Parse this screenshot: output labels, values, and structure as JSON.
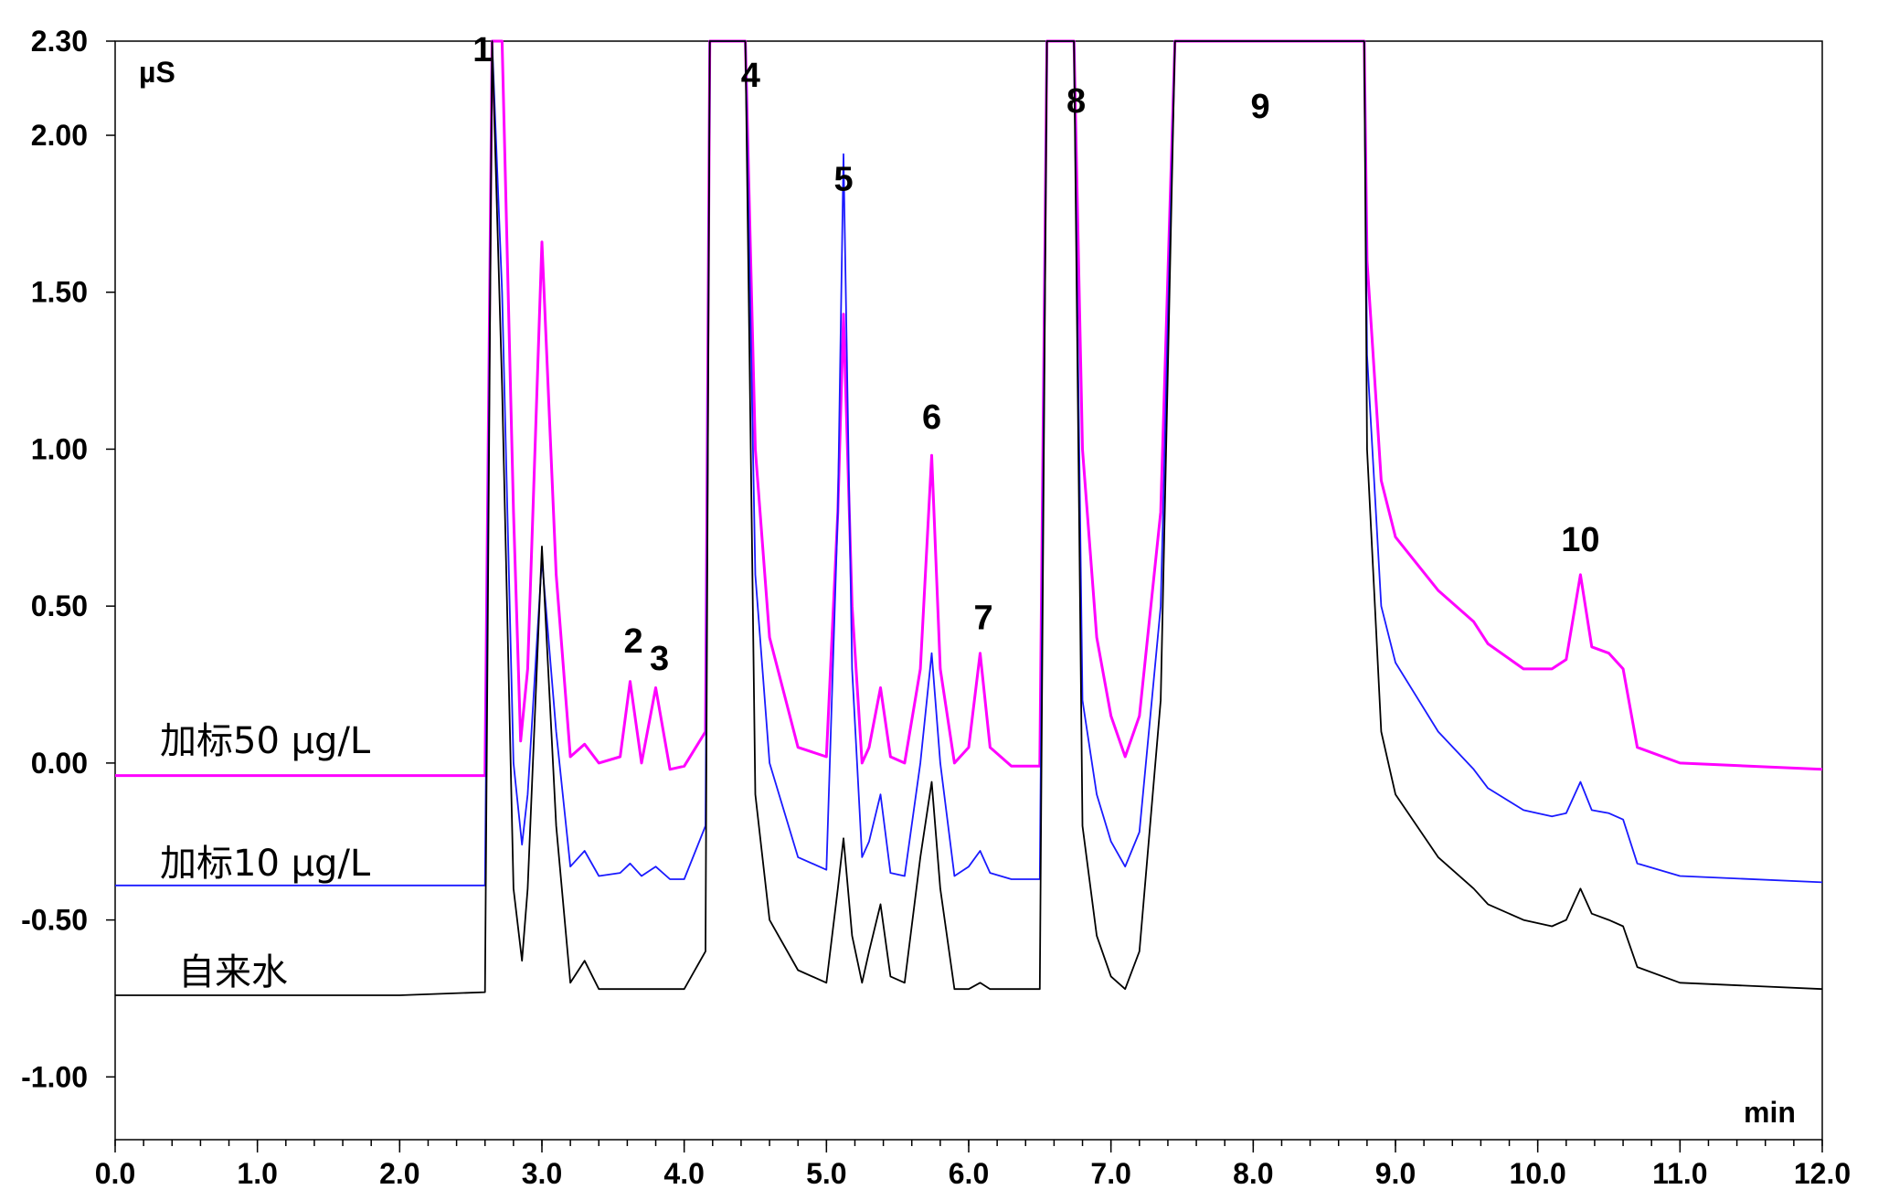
{
  "chart_data": {
    "type": "line",
    "title": "",
    "xlabel": "min",
    "ylabel": "µS",
    "xlim": [
      0.0,
      12.0
    ],
    "ylim": [
      -1.2,
      2.3
    ],
    "x_ticks": [
      "0.0",
      "1.0",
      "2.0",
      "3.0",
      "4.0",
      "5.0",
      "6.0",
      "7.0",
      "8.0",
      "9.0",
      "10.0",
      "11.0",
      "12.0"
    ],
    "y_ticks": [
      "2.30",
      "2.00",
      "1.50",
      "1.00",
      "0.50",
      "0.00",
      "-0.50",
      "-1.00"
    ],
    "y_tick_values": [
      2.3,
      2.0,
      1.5,
      1.0,
      0.5,
      0.0,
      -0.5,
      -1.0
    ],
    "grid": false,
    "peaks": [
      {
        "label": "1",
        "x": 2.62,
        "y": 2.3
      },
      {
        "label": "2",
        "x": 3.63,
        "y": 0.27
      },
      {
        "label": "3",
        "x": 3.8,
        "y": 0.25
      },
      {
        "label": "4",
        "x": 4.3,
        "y": 2.3
      },
      {
        "label": "5",
        "x": 5.12,
        "y": 1.94
      },
      {
        "label": "6",
        "x": 5.74,
        "y": 0.99
      },
      {
        "label": "7",
        "x": 6.09,
        "y": 0.35
      },
      {
        "label": "8",
        "x": 6.64,
        "y": 2.3
      },
      {
        "label": "9",
        "x": 8.05,
        "y": 2.3
      },
      {
        "label": "10",
        "x": 10.3,
        "y": 0.6
      }
    ],
    "series": [
      {
        "name": "加标50 µg/L",
        "color": "#ff00ff",
        "baseline": -0.04,
        "tail_decay": 0.5,
        "points": [
          [
            2.6,
            -0.04
          ],
          [
            2.65,
            2.3
          ],
          [
            2.72,
            2.3
          ],
          [
            2.8,
            0.8
          ],
          [
            2.85,
            0.07
          ],
          [
            2.9,
            0.3
          ],
          [
            3.0,
            1.66
          ],
          [
            3.1,
            0.6
          ],
          [
            3.2,
            0.02
          ],
          [
            3.3,
            0.06
          ],
          [
            3.4,
            0.0
          ],
          [
            3.55,
            0.02
          ],
          [
            3.62,
            0.26
          ],
          [
            3.7,
            0.0
          ],
          [
            3.8,
            0.24
          ],
          [
            3.9,
            -0.02
          ],
          [
            4.0,
            -0.01
          ],
          [
            4.15,
            0.1
          ],
          [
            4.18,
            2.3
          ],
          [
            4.43,
            2.3
          ],
          [
            4.5,
            1.0
          ],
          [
            4.6,
            0.4
          ],
          [
            4.8,
            0.05
          ],
          [
            5.0,
            0.02
          ],
          [
            5.08,
            0.8
          ],
          [
            5.12,
            1.43
          ],
          [
            5.18,
            0.5
          ],
          [
            5.25,
            0.0
          ],
          [
            5.3,
            0.05
          ],
          [
            5.38,
            0.24
          ],
          [
            5.45,
            0.02
          ],
          [
            5.55,
            0.0
          ],
          [
            5.66,
            0.3
          ],
          [
            5.74,
            0.98
          ],
          [
            5.8,
            0.3
          ],
          [
            5.9,
            0.0
          ],
          [
            6.0,
            0.05
          ],
          [
            6.08,
            0.35
          ],
          [
            6.15,
            0.05
          ],
          [
            6.3,
            -0.01
          ],
          [
            6.5,
            -0.01
          ],
          [
            6.55,
            2.3
          ],
          [
            6.74,
            2.3
          ],
          [
            6.8,
            1.0
          ],
          [
            6.9,
            0.4
          ],
          [
            7.0,
            0.15
          ],
          [
            7.1,
            0.02
          ],
          [
            7.2,
            0.15
          ],
          [
            7.35,
            0.8
          ],
          [
            7.45,
            2.3
          ],
          [
            8.78,
            2.3
          ]
        ],
        "tail_points": [
          [
            8.8,
            1.6
          ],
          [
            8.9,
            0.9
          ],
          [
            9.0,
            0.72
          ],
          [
            9.3,
            0.55
          ],
          [
            9.55,
            0.45
          ],
          [
            9.65,
            0.38
          ],
          [
            9.9,
            0.3
          ],
          [
            10.1,
            0.3
          ],
          [
            10.2,
            0.33
          ],
          [
            10.3,
            0.6
          ],
          [
            10.38,
            0.37
          ],
          [
            10.5,
            0.35
          ],
          [
            10.6,
            0.3
          ],
          [
            10.7,
            0.05
          ],
          [
            11.0,
            0.0
          ],
          [
            12.0,
            -0.02
          ]
        ]
      },
      {
        "name": "加标10 µg/L",
        "color": "#1a1aff",
        "baseline": -0.39,
        "points": [
          [
            2.6,
            -0.39
          ],
          [
            2.65,
            2.3
          ],
          [
            2.72,
            1.5
          ],
          [
            2.8,
            0.0
          ],
          [
            2.86,
            -0.26
          ],
          [
            2.9,
            -0.1
          ],
          [
            3.0,
            0.65
          ],
          [
            3.1,
            0.1
          ],
          [
            3.2,
            -0.33
          ],
          [
            3.3,
            -0.28
          ],
          [
            3.4,
            -0.36
          ],
          [
            3.55,
            -0.35
          ],
          [
            3.62,
            -0.32
          ],
          [
            3.7,
            -0.36
          ],
          [
            3.8,
            -0.33
          ],
          [
            3.9,
            -0.37
          ],
          [
            4.0,
            -0.37
          ],
          [
            4.15,
            -0.2
          ],
          [
            4.18,
            2.3
          ],
          [
            4.43,
            2.3
          ],
          [
            4.5,
            0.6
          ],
          [
            4.6,
            0.0
          ],
          [
            4.8,
            -0.3
          ],
          [
            5.0,
            -0.34
          ],
          [
            5.08,
            0.8
          ],
          [
            5.12,
            1.94
          ],
          [
            5.18,
            0.3
          ],
          [
            5.25,
            -0.3
          ],
          [
            5.3,
            -0.25
          ],
          [
            5.38,
            -0.1
          ],
          [
            5.45,
            -0.35
          ],
          [
            5.55,
            -0.36
          ],
          [
            5.66,
            0.0
          ],
          [
            5.74,
            0.35
          ],
          [
            5.8,
            0.0
          ],
          [
            5.9,
            -0.36
          ],
          [
            6.0,
            -0.33
          ],
          [
            6.08,
            -0.28
          ],
          [
            6.15,
            -0.35
          ],
          [
            6.3,
            -0.37
          ],
          [
            6.5,
            -0.37
          ],
          [
            6.55,
            2.3
          ],
          [
            6.74,
            2.3
          ],
          [
            6.8,
            0.2
          ],
          [
            6.9,
            -0.1
          ],
          [
            7.0,
            -0.25
          ],
          [
            7.1,
            -0.33
          ],
          [
            7.2,
            -0.22
          ],
          [
            7.35,
            0.5
          ],
          [
            7.45,
            2.3
          ],
          [
            8.78,
            2.3
          ]
        ],
        "tail_points": [
          [
            8.8,
            1.3
          ],
          [
            8.9,
            0.5
          ],
          [
            9.0,
            0.32
          ],
          [
            9.3,
            0.1
          ],
          [
            9.55,
            -0.02
          ],
          [
            9.65,
            -0.08
          ],
          [
            9.9,
            -0.15
          ],
          [
            10.1,
            -0.17
          ],
          [
            10.2,
            -0.16
          ],
          [
            10.3,
            -0.06
          ],
          [
            10.38,
            -0.15
          ],
          [
            10.5,
            -0.16
          ],
          [
            10.6,
            -0.18
          ],
          [
            10.7,
            -0.32
          ],
          [
            11.0,
            -0.36
          ],
          [
            12.0,
            -0.38
          ]
        ]
      },
      {
        "name": "自来水",
        "color": "#000000",
        "baseline": -0.74,
        "points": [
          [
            2.6,
            -0.73
          ],
          [
            2.65,
            2.3
          ],
          [
            2.72,
            1.2
          ],
          [
            2.8,
            -0.4
          ],
          [
            2.86,
            -0.63
          ],
          [
            2.9,
            -0.4
          ],
          [
            3.0,
            0.69
          ],
          [
            3.1,
            -0.2
          ],
          [
            3.2,
            -0.7
          ],
          [
            3.3,
            -0.63
          ],
          [
            3.4,
            -0.72
          ],
          [
            3.55,
            -0.72
          ],
          [
            3.62,
            -0.72
          ],
          [
            3.7,
            -0.72
          ],
          [
            3.8,
            -0.72
          ],
          [
            3.9,
            -0.72
          ],
          [
            4.0,
            -0.72
          ],
          [
            4.15,
            -0.6
          ],
          [
            4.18,
            2.3
          ],
          [
            4.43,
            2.3
          ],
          [
            4.5,
            -0.1
          ],
          [
            4.6,
            -0.5
          ],
          [
            4.8,
            -0.66
          ],
          [
            5.0,
            -0.7
          ],
          [
            5.08,
            -0.4
          ],
          [
            5.12,
            -0.24
          ],
          [
            5.18,
            -0.55
          ],
          [
            5.25,
            -0.7
          ],
          [
            5.3,
            -0.6
          ],
          [
            5.38,
            -0.45
          ],
          [
            5.45,
            -0.68
          ],
          [
            5.55,
            -0.7
          ],
          [
            5.66,
            -0.3
          ],
          [
            5.74,
            -0.06
          ],
          [
            5.8,
            -0.4
          ],
          [
            5.9,
            -0.72
          ],
          [
            6.0,
            -0.72
          ],
          [
            6.08,
            -0.7
          ],
          [
            6.15,
            -0.72
          ],
          [
            6.3,
            -0.72
          ],
          [
            6.5,
            -0.72
          ],
          [
            6.55,
            2.3
          ],
          [
            6.74,
            2.3
          ],
          [
            6.8,
            -0.2
          ],
          [
            6.9,
            -0.55
          ],
          [
            7.0,
            -0.68
          ],
          [
            7.1,
            -0.72
          ],
          [
            7.2,
            -0.6
          ],
          [
            7.35,
            0.2
          ],
          [
            7.45,
            2.3
          ],
          [
            8.78,
            2.3
          ]
        ],
        "tail_points": [
          [
            8.8,
            1.0
          ],
          [
            8.9,
            0.1
          ],
          [
            9.0,
            -0.1
          ],
          [
            9.3,
            -0.3
          ],
          [
            9.55,
            -0.4
          ],
          [
            9.65,
            -0.45
          ],
          [
            9.9,
            -0.5
          ],
          [
            10.1,
            -0.52
          ],
          [
            10.2,
            -0.5
          ],
          [
            10.3,
            -0.4
          ],
          [
            10.38,
            -0.48
          ],
          [
            10.5,
            -0.5
          ],
          [
            10.6,
            -0.52
          ],
          [
            10.7,
            -0.65
          ],
          [
            11.0,
            -0.7
          ],
          [
            12.0,
            -0.72
          ]
        ]
      }
    ],
    "series_labels": [
      "加标50 µg/L",
      "加标10 µg/L",
      "自来水"
    ]
  }
}
